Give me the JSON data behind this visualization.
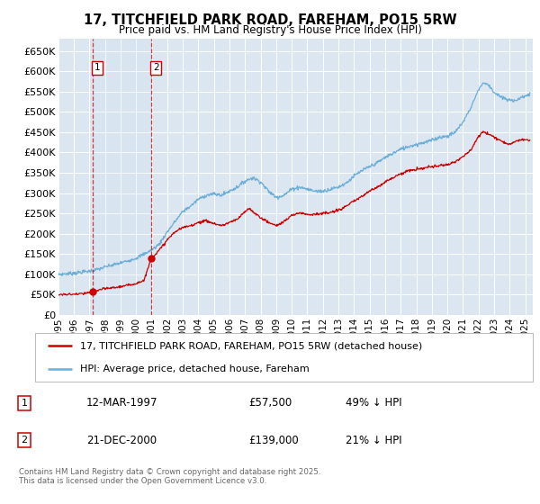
{
  "title": "17, TITCHFIELD PARK ROAD, FAREHAM, PO15 5RW",
  "subtitle": "Price paid vs. HM Land Registry's House Price Index (HPI)",
  "ylim": [
    0,
    680000
  ],
  "yticks": [
    0,
    50000,
    100000,
    150000,
    200000,
    250000,
    300000,
    350000,
    400000,
    450000,
    500000,
    550000,
    600000,
    650000
  ],
  "ytick_labels": [
    "£0",
    "£50K",
    "£100K",
    "£150K",
    "£200K",
    "£250K",
    "£300K",
    "£350K",
    "£400K",
    "£450K",
    "£500K",
    "£550K",
    "£600K",
    "£650K"
  ],
  "background_color": "#ffffff",
  "plot_background": "#dce6f0",
  "grid_color": "#ffffff",
  "transactions": [
    {
      "date_num": 1997.19,
      "price": 57500,
      "label": "1",
      "date_str": "12-MAR-1997",
      "pct": "49% ↓ HPI"
    },
    {
      "date_num": 2000.97,
      "price": 139000,
      "label": "2",
      "date_str": "21-DEC-2000",
      "pct": "21% ↓ HPI"
    }
  ],
  "transaction_color": "#cc0000",
  "hpi_color": "#6baed6",
  "legend_line1": "17, TITCHFIELD PARK ROAD, FAREHAM, PO15 5RW (detached house)",
  "legend_line2": "HPI: Average price, detached house, Fareham",
  "footer": "Contains HM Land Registry data © Crown copyright and database right 2025.\nThis data is licensed under the Open Government Licence v3.0.",
  "xmin": 1995.0,
  "xmax": 2025.5,
  "hpi_anchors": [
    [
      1995.0,
      100000
    ],
    [
      1996.0,
      103000
    ],
    [
      1997.0,
      108000
    ],
    [
      1997.5,
      112000
    ],
    [
      1998.0,
      118000
    ],
    [
      1999.0,
      128000
    ],
    [
      2000.0,
      140000
    ],
    [
      2001.0,
      160000
    ],
    [
      2001.5,
      175000
    ],
    [
      2002.0,
      205000
    ],
    [
      2002.5,
      230000
    ],
    [
      2003.0,
      255000
    ],
    [
      2003.5,
      268000
    ],
    [
      2004.0,
      285000
    ],
    [
      2004.5,
      295000
    ],
    [
      2005.0,
      298000
    ],
    [
      2005.5,
      295000
    ],
    [
      2006.0,
      305000
    ],
    [
      2006.5,
      315000
    ],
    [
      2007.0,
      330000
    ],
    [
      2007.5,
      338000
    ],
    [
      2008.0,
      328000
    ],
    [
      2008.5,
      305000
    ],
    [
      2009.0,
      290000
    ],
    [
      2009.5,
      295000
    ],
    [
      2010.0,
      310000
    ],
    [
      2010.5,
      315000
    ],
    [
      2011.0,
      310000
    ],
    [
      2011.5,
      305000
    ],
    [
      2012.0,
      305000
    ],
    [
      2012.5,
      310000
    ],
    [
      2013.0,
      315000
    ],
    [
      2013.5,
      325000
    ],
    [
      2014.0,
      342000
    ],
    [
      2014.5,
      355000
    ],
    [
      2015.0,
      365000
    ],
    [
      2015.5,
      375000
    ],
    [
      2016.0,
      388000
    ],
    [
      2016.5,
      398000
    ],
    [
      2017.0,
      408000
    ],
    [
      2017.5,
      415000
    ],
    [
      2018.0,
      420000
    ],
    [
      2018.5,
      425000
    ],
    [
      2019.0,
      430000
    ],
    [
      2019.5,
      438000
    ],
    [
      2020.0,
      440000
    ],
    [
      2020.5,
      450000
    ],
    [
      2021.0,
      475000
    ],
    [
      2021.5,
      510000
    ],
    [
      2022.0,
      555000
    ],
    [
      2022.3,
      572000
    ],
    [
      2022.7,
      565000
    ],
    [
      2023.0,
      548000
    ],
    [
      2023.5,
      535000
    ],
    [
      2024.0,
      528000
    ],
    [
      2024.5,
      530000
    ],
    [
      2025.0,
      540000
    ],
    [
      2025.3,
      542000
    ]
  ],
  "prop_anchors": [
    [
      1995.0,
      50000
    ],
    [
      1996.0,
      51000
    ],
    [
      1996.5,
      52000
    ],
    [
      1997.0,
      55000
    ],
    [
      1997.19,
      57500
    ],
    [
      1997.5,
      60000
    ],
    [
      1998.0,
      65000
    ],
    [
      1998.5,
      67000
    ],
    [
      1999.0,
      70000
    ],
    [
      1999.5,
      73000
    ],
    [
      2000.0,
      78000
    ],
    [
      2000.5,
      85000
    ],
    [
      2000.97,
      139000
    ],
    [
      2001.2,
      148000
    ],
    [
      2001.5,
      160000
    ],
    [
      2002.0,
      185000
    ],
    [
      2002.5,
      205000
    ],
    [
      2003.0,
      215000
    ],
    [
      2003.5,
      220000
    ],
    [
      2004.0,
      228000
    ],
    [
      2004.5,
      232000
    ],
    [
      2005.0,
      225000
    ],
    [
      2005.5,
      220000
    ],
    [
      2006.0,
      228000
    ],
    [
      2006.5,
      235000
    ],
    [
      2007.0,
      255000
    ],
    [
      2007.3,
      262000
    ],
    [
      2007.7,
      248000
    ],
    [
      2008.0,
      240000
    ],
    [
      2008.5,
      228000
    ],
    [
      2009.0,
      220000
    ],
    [
      2009.5,
      230000
    ],
    [
      2010.0,
      245000
    ],
    [
      2010.5,
      252000
    ],
    [
      2011.0,
      248000
    ],
    [
      2011.5,
      248000
    ],
    [
      2012.0,
      250000
    ],
    [
      2012.5,
      252000
    ],
    [
      2013.0,
      258000
    ],
    [
      2013.5,
      268000
    ],
    [
      2014.0,
      280000
    ],
    [
      2014.5,
      292000
    ],
    [
      2015.0,
      305000
    ],
    [
      2015.5,
      315000
    ],
    [
      2016.0,
      328000
    ],
    [
      2016.5,
      338000
    ],
    [
      2017.0,
      348000
    ],
    [
      2017.5,
      355000
    ],
    [
      2018.0,
      358000
    ],
    [
      2018.5,
      362000
    ],
    [
      2019.0,
      365000
    ],
    [
      2019.5,
      368000
    ],
    [
      2020.0,
      370000
    ],
    [
      2020.5,
      378000
    ],
    [
      2021.0,
      390000
    ],
    [
      2021.5,
      405000
    ],
    [
      2022.0,
      440000
    ],
    [
      2022.3,
      452000
    ],
    [
      2022.7,
      445000
    ],
    [
      2023.0,
      438000
    ],
    [
      2023.5,
      428000
    ],
    [
      2024.0,
      420000
    ],
    [
      2024.5,
      430000
    ],
    [
      2025.0,
      432000
    ],
    [
      2025.3,
      430000
    ]
  ]
}
